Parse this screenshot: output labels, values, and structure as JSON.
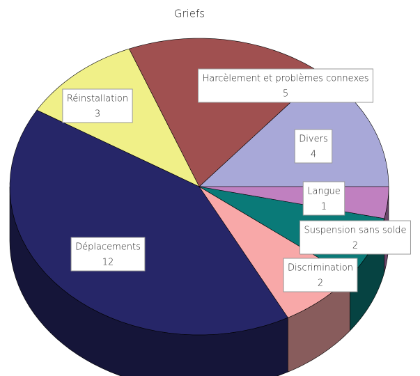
{
  "chart_data": {
    "type": "pie3d",
    "title": "Griefs",
    "categories": [
      "Divers",
      "Harcèlement et problèmes connexes",
      "Réinstallation",
      "Déplacements",
      "Discrimination",
      "Suspension sans solde",
      "Langue"
    ],
    "values": [
      4,
      5,
      3,
      12,
      2,
      2,
      1
    ],
    "colors": [
      "#a8a8d8",
      "#a05050",
      "#f0f088",
      "#262668",
      "#f8a8a8",
      "#0a7a78",
      "#c080c0"
    ]
  }
}
